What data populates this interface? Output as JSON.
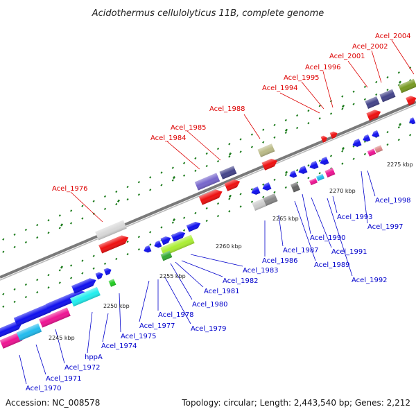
{
  "title": "Acidothermus cellulolyticus 11B, complete genome",
  "footer": {
    "accession": "Accession: NC_008578",
    "topology": "Topology: circular; Length: 2,443,540 bp; Genes: 2,212"
  },
  "colors": {
    "backbone": "#8a8a8a",
    "label_red": "#dd0000",
    "label_blue": "#0000cc",
    "tick": "#1a7a1a"
  },
  "ticks": [
    {
      "label": "2245 kbp"
    },
    {
      "label": "2250 kbp"
    },
    {
      "label": "2255 kbp"
    },
    {
      "label": "2260 kbp"
    },
    {
      "label": "2265 kbp"
    },
    {
      "label": "2270 kbp"
    },
    {
      "label": "2275 kbp"
    }
  ],
  "top_labels": [
    "Acel_1976",
    "Acel_1984",
    "Acel_1985",
    "Acel_1988",
    "Acel_1994",
    "Acel_1995",
    "Acel_1996",
    "Acel_2001",
    "Acel_2002",
    "Acel_2004"
  ],
  "bottom_labels": [
    "Acel_1970",
    "Acel_1971",
    "Acel_1972",
    "hppA",
    "Acel_1974",
    "Acel_1975",
    "Acel_1977",
    "Acel_1978",
    "Acel_1979",
    "Acel_1980",
    "Acel_1981",
    "Acel_1982",
    "Acel_1983",
    "Acel_1986",
    "Acel_1987",
    "Acel_1989",
    "Acel_1990",
    "Acel_1991",
    "Acel_1992",
    "Acel_1993",
    "Acel_1997",
    "Acel_1998"
  ]
}
